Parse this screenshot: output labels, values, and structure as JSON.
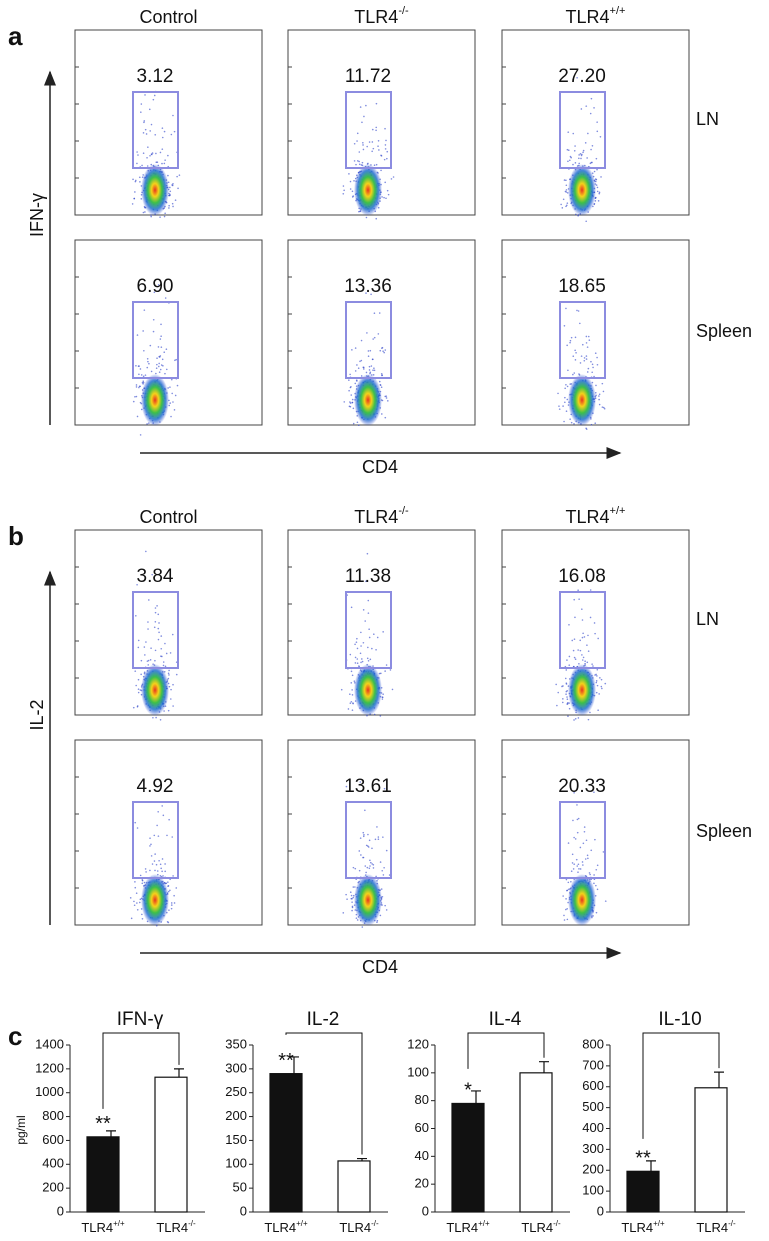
{
  "flow_panels": [
    {
      "letter": "a",
      "y_label": "IFN-γ",
      "x_label": "CD4",
      "columns": [
        {
          "base": "Control"
        },
        {
          "base": "TLR4",
          "sup": "-/-"
        },
        {
          "base": "TLR4",
          "sup": "+/+"
        }
      ],
      "rows": [
        {
          "label": "LN",
          "gates": [
            "3.12",
            "11.72",
            "27.20"
          ]
        },
        {
          "label": "Spleen",
          "gates": [
            "6.90",
            "13.36",
            "18.65"
          ]
        }
      ]
    },
    {
      "letter": "b",
      "y_label": "IL-2",
      "x_label": "CD4",
      "columns": [
        {
          "base": "Control"
        },
        {
          "base": "TLR4",
          "sup": "-/-"
        },
        {
          "base": "TLR4",
          "sup": "+/+"
        }
      ],
      "rows": [
        {
          "label": "LN",
          "gates": [
            "3.84",
            "11.38",
            "16.08"
          ]
        },
        {
          "label": "Spleen",
          "gates": [
            "4.92",
            "13.61",
            "20.33"
          ]
        }
      ]
    }
  ],
  "panel_c_letter": "c",
  "chart_data": [
    {
      "type": "bar",
      "title": "IFN-γ",
      "y_label": "pg/ml",
      "categories": [
        {
          "base": "TLR4",
          "sup": "+/+"
        },
        {
          "base": "TLR4",
          "sup": "-/-"
        }
      ],
      "values": [
        630,
        1130
      ],
      "errors": [
        50,
        70
      ],
      "colors": [
        "#111111",
        "#ffffff"
      ],
      "value_annotations": [
        "**",
        null
      ],
      "ylim": [
        0,
        1400
      ],
      "yticks": [
        0,
        200,
        400,
        600,
        800,
        1000,
        1200,
        1400
      ]
    },
    {
      "type": "bar",
      "title": "IL-2",
      "categories": [
        {
          "base": "TLR4",
          "sup": "+/+"
        },
        {
          "base": "TLR4",
          "sup": "-/-"
        }
      ],
      "values": [
        290,
        107
      ],
      "errors": [
        35,
        5
      ],
      "colors": [
        "#111111",
        "#ffffff"
      ],
      "value_annotations": [
        "**",
        null
      ],
      "ylim": [
        0,
        350
      ],
      "yticks": [
        0,
        50,
        100,
        150,
        200,
        250,
        300,
        350
      ]
    },
    {
      "type": "bar",
      "title": "IL-4",
      "categories": [
        {
          "base": "TLR4",
          "sup": "+/+"
        },
        {
          "base": "TLR4",
          "sup": "-/-"
        }
      ],
      "values": [
        78,
        100
      ],
      "errors": [
        9,
        8
      ],
      "colors": [
        "#111111",
        "#ffffff"
      ],
      "value_annotations": [
        "*",
        null
      ],
      "ylim": [
        0,
        120
      ],
      "yticks": [
        0,
        20,
        40,
        60,
        80,
        100,
        120
      ]
    },
    {
      "type": "bar",
      "title": "IL-10",
      "categories": [
        {
          "base": "TLR4",
          "sup": "+/+"
        },
        {
          "base": "TLR4",
          "sup": "-/-"
        }
      ],
      "values": [
        195,
        595
      ],
      "errors": [
        50,
        75
      ],
      "colors": [
        "#111111",
        "#ffffff"
      ],
      "value_annotations": [
        "**",
        null
      ],
      "ylim": [
        0,
        800
      ],
      "yticks": [
        0,
        100,
        200,
        300,
        400,
        500,
        600,
        700,
        800
      ]
    }
  ]
}
